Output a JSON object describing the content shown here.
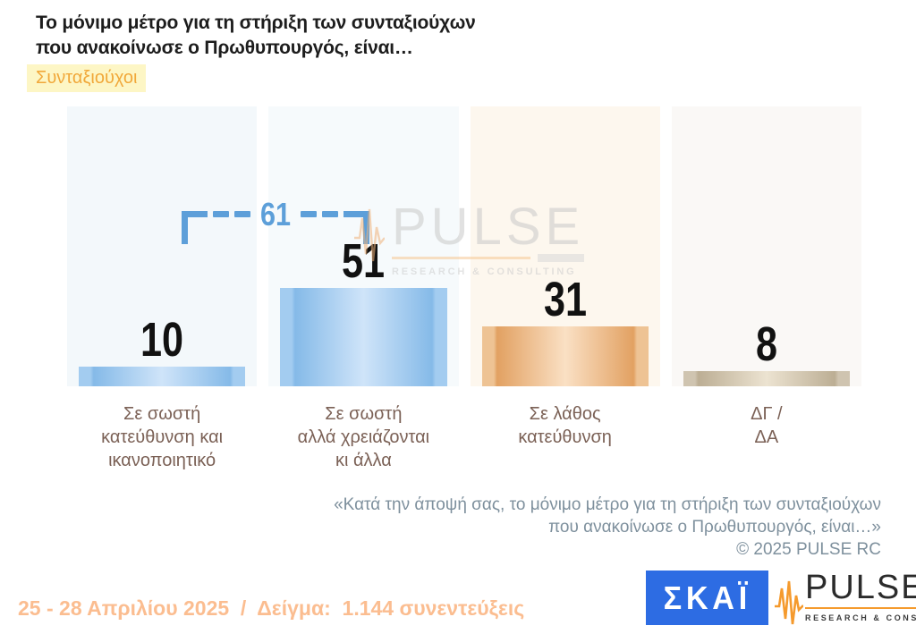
{
  "header": {
    "title": "Το μόνιμο μέτρο  για τη στήριξη των συνταξιούχων\nπου ανακοίνωσε ο Πρωθυπουργός, είναι…",
    "tag": "Συνταξιούχοι"
  },
  "chart_data": {
    "type": "bar",
    "categories": [
      "Σε σωστή\nκατεύθυνση και\nικανοποιητικό",
      "Σε σωστή\nαλλά χρειάζονται\nκι άλλα",
      "Σε λάθος\nκατεύθυνση",
      "ΔΓ /\nΔΑ"
    ],
    "values": [
      10,
      51,
      31,
      8
    ],
    "series": [
      {
        "name": "Συνταξιούχοι",
        "values": [
          10,
          51,
          31,
          8
        ]
      }
    ],
    "annotations": [
      {
        "label": "61",
        "covers_categories": [
          0,
          1
        ]
      }
    ],
    "unit": "percent",
    "ylim": [
      0,
      100
    ],
    "grid": false,
    "legend": false
  },
  "watermark": {
    "brand": "PULSE",
    "subtitle": "RESEARCH & CONSULTING"
  },
  "footnote": {
    "text": "«Κατά την άποψή σας, το μόνιμο μέτρο  για τη στήριξη των συνταξιούχων\nπου ανακοίνωσε ο Πρωθυπουργός, είναι…»\n©  2025  PULSE RC"
  },
  "footer": {
    "fieldwork": "25 - 28 Απριλίου 2025  /  Δείγμα:  1.144 συνεντεύξεις",
    "skai_logo_text": "ΣΚΑΪ",
    "pulse_logo": {
      "brand": "PULSE",
      "subtitle": "RESEARCH & CONSULTING"
    }
  },
  "colors": {
    "accent_blue": "#5d9fd9",
    "bar_blue": "#85bae8",
    "bar_orange": "#e2a162",
    "bar_tan": "#bcae94",
    "panel_blue": "#f3f8fb",
    "panel_cream": "#fdf7ee",
    "panel_gray": "#faf8f6",
    "tag_bg": "#fdf6c5",
    "tag_text": "#f1a83a",
    "category_label": "#7b6156",
    "footnote_text": "#7e909d",
    "footer_text": "#fbbd90",
    "skai_blue": "#2d6ce3",
    "pulse_orange": "#f59a2d"
  }
}
